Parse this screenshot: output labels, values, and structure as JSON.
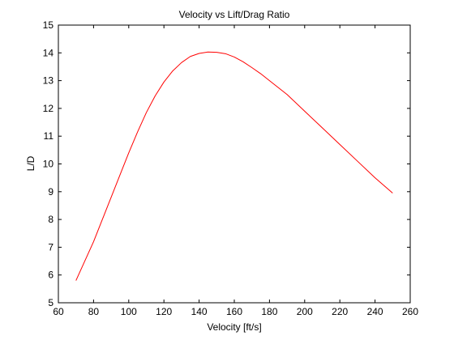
{
  "chart_data": {
    "type": "line",
    "title": "Velocity vs Lift/Drag Ratio",
    "xlabel": "Velocity [ft/s]",
    "ylabel": "L/D",
    "xlim": [
      60,
      260
    ],
    "ylim": [
      5,
      15
    ],
    "xticks": [
      60,
      80,
      100,
      120,
      140,
      160,
      180,
      200,
      220,
      240,
      260
    ],
    "yticks": [
      5,
      6,
      7,
      8,
      9,
      10,
      11,
      12,
      13,
      14,
      15
    ],
    "grid": false,
    "series": [
      {
        "color": "#ff0000",
        "x": [
          70,
          75,
          80,
          85,
          90,
          95,
          100,
          105,
          110,
          115,
          120,
          125,
          130,
          135,
          140,
          145,
          150,
          155,
          160,
          165,
          170,
          175,
          180,
          190,
          200,
          210,
          220,
          230,
          240,
          250
        ],
        "y": [
          5.8,
          6.5,
          7.2,
          8.0,
          8.8,
          9.6,
          10.4,
          11.15,
          11.85,
          12.45,
          12.95,
          13.35,
          13.65,
          13.87,
          13.98,
          14.03,
          14.02,
          13.97,
          13.85,
          13.68,
          13.47,
          13.25,
          13.0,
          12.5,
          11.9,
          11.3,
          10.7,
          10.1,
          9.5,
          8.95
        ]
      }
    ]
  }
}
